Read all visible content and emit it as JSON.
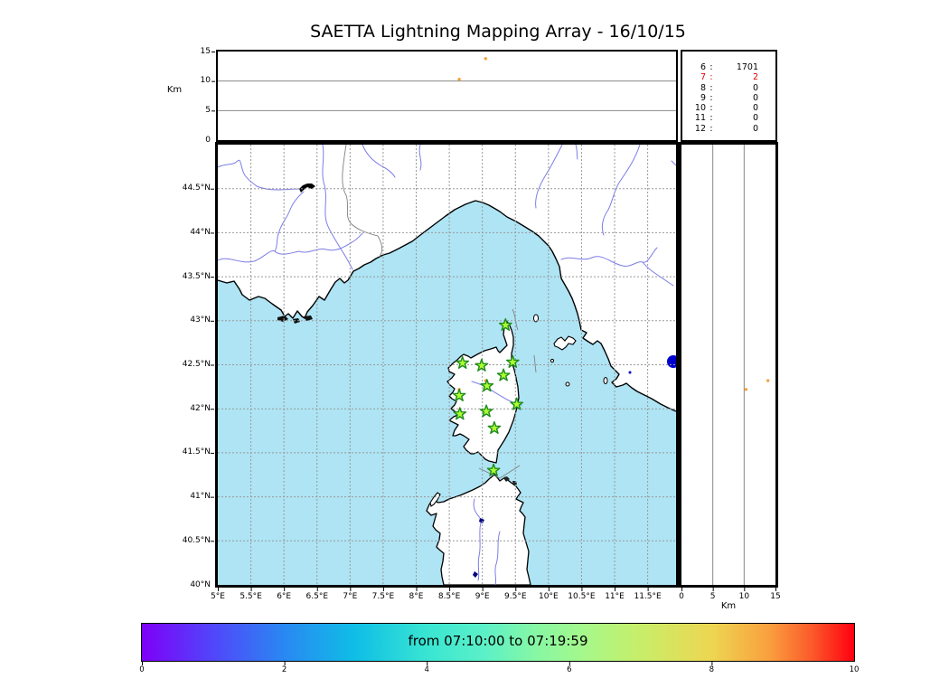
{
  "title": "SAETTA Lightning Mapping Array - 16/10/15",
  "colors": {
    "sea": "#AEE4F4",
    "land": "#FFFFFF",
    "coast": "#000000",
    "river": "#7D7DE8",
    "grid": "#999999",
    "boundary_line": "#808080",
    "lake_dark": "#000000",
    "lake_blue": "#0000CC",
    "station_fill": "#ADFF2F",
    "station_edge": "#1E8B1E",
    "source": "#F2A33C",
    "highlight_text": "#DD0000"
  },
  "chart_data": {
    "type": "scatter",
    "title": "SAETTA Lightning Mapping Array - 16/10/15",
    "map": {
      "lon_range": [
        5,
        11.93
      ],
      "lat_range": [
        40,
        45
      ],
      "grid": true,
      "lon_ticks": [
        {
          "label": "5°E",
          "value": 5
        },
        {
          "label": "5.5°E",
          "value": 5.5
        },
        {
          "label": "6°E",
          "value": 6
        },
        {
          "label": "6.5°E",
          "value": 6.5
        },
        {
          "label": "7°E",
          "value": 7
        },
        {
          "label": "7.5°E",
          "value": 7.5
        },
        {
          "label": "8°E",
          "value": 8
        },
        {
          "label": "8.5°E",
          "value": 8.5
        },
        {
          "label": "9°E",
          "value": 9
        },
        {
          "label": "9.5°E",
          "value": 9.5
        },
        {
          "label": "10°E",
          "value": 10
        },
        {
          "label": "10.5°E",
          "value": 10.5
        },
        {
          "label": "11°E",
          "value": 11
        },
        {
          "label": "11.5°E",
          "value": 11.5
        }
      ],
      "lat_ticks": [
        {
          "label": "44.5°N",
          "value": 44.5
        },
        {
          "label": "44°N",
          "value": 44
        },
        {
          "label": "43.5°N",
          "value": 43.5
        },
        {
          "label": "43°N",
          "value": 43
        },
        {
          "label": "42.5°N",
          "value": 42.5
        },
        {
          "label": "42°N",
          "value": 42
        },
        {
          "label": "41.5°N",
          "value": 41.5
        },
        {
          "label": "41°N",
          "value": 41
        },
        {
          "label": "40.5°N",
          "value": 40.5
        },
        {
          "label": "40°N",
          "value": 40
        }
      ]
    },
    "altitude_axis": {
      "label": "Km",
      "range": [
        0,
        15
      ],
      "ticks": [
        {
          "label": "0",
          "value": 0
        },
        {
          "label": "5",
          "value": 5
        },
        {
          "label": "10",
          "value": 10
        },
        {
          "label": "15",
          "value": 15
        }
      ],
      "gridlines": [
        5,
        10
      ]
    },
    "stations_lonlat": [
      [
        9.35,
        42.95
      ],
      [
        8.7,
        42.52
      ],
      [
        8.99,
        42.49
      ],
      [
        9.46,
        42.53
      ],
      [
        9.32,
        42.38
      ],
      [
        9.07,
        42.26
      ],
      [
        8.65,
        42.15
      ],
      [
        9.52,
        42.05
      ],
      [
        9.06,
        41.97
      ],
      [
        8.66,
        41.94
      ],
      [
        9.18,
        41.78
      ],
      [
        9.17,
        41.3
      ]
    ],
    "sources": [
      {
        "lon": 9.05,
        "lat": 42.32,
        "alt_km": 13.8
      },
      {
        "lon": 8.65,
        "lat": 42.22,
        "alt_km": 10.3
      }
    ],
    "counts": [
      {
        "label": "6",
        "value": "1701",
        "highlight": false
      },
      {
        "label": "7",
        "value": "2",
        "highlight": true
      },
      {
        "label": "8",
        "value": "0",
        "highlight": false
      },
      {
        "label": "9",
        "value": "0",
        "highlight": false
      },
      {
        "label": "10",
        "value": "0",
        "highlight": false
      },
      {
        "label": "11",
        "value": "0",
        "highlight": false
      },
      {
        "label": "12",
        "value": "0",
        "highlight": false
      }
    ],
    "colorbar": {
      "label": "from 07:10:00 to 07:19:59",
      "range": [
        0,
        10
      ],
      "ticks": [
        {
          "label": "0",
          "value": 0
        },
        {
          "label": "2",
          "value": 2
        },
        {
          "label": "4",
          "value": 4
        },
        {
          "label": "6",
          "value": 6
        },
        {
          "label": "8",
          "value": 8
        },
        {
          "label": "10",
          "value": 10
        }
      ],
      "gradient": [
        {
          "pos": 0,
          "color": "#7E00F8"
        },
        {
          "pos": 10,
          "color": "#5146FA"
        },
        {
          "pos": 20,
          "color": "#2988F2"
        },
        {
          "pos": 30,
          "color": "#0FBEE6"
        },
        {
          "pos": 40,
          "color": "#39E5D2"
        },
        {
          "pos": 48,
          "color": "#5BF0C8"
        },
        {
          "pos": 55,
          "color": "#85F7A5"
        },
        {
          "pos": 62,
          "color": "#A5F88B"
        },
        {
          "pos": 70,
          "color": "#C8EE69"
        },
        {
          "pos": 80,
          "color": "#EDD652"
        },
        {
          "pos": 88,
          "color": "#F9A03E"
        },
        {
          "pos": 94,
          "color": "#FB5B2B"
        },
        {
          "pos": 100,
          "color": "#FF0010"
        }
      ]
    }
  }
}
